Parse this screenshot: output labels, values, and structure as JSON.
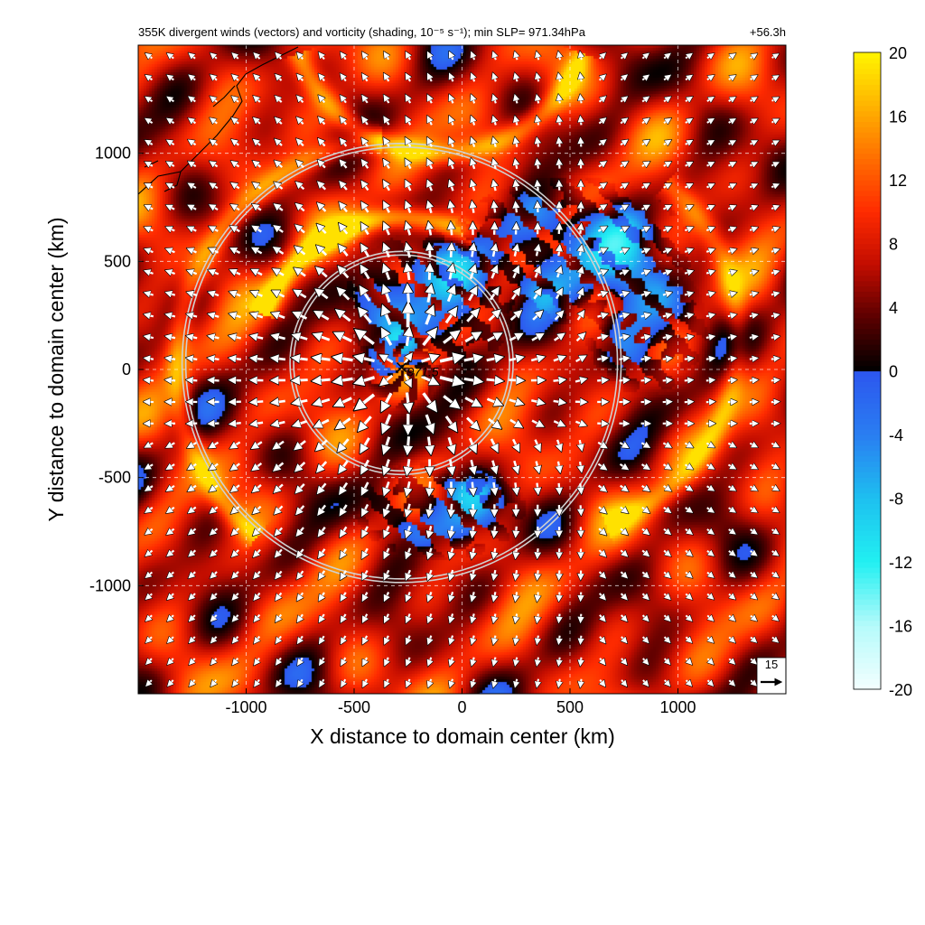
{
  "chart_data": {
    "type": "heatmap",
    "title": "355K divergent winds (vectors) and vorticity (shading, 10⁻⁵ s⁻¹); min SLP= 971.34hPa",
    "forecast_hour_label": "+56.3h",
    "xlabel": "X distance to domain center (km)",
    "ylabel": "Y distance to domain center (km)",
    "xlim": [
      -1500,
      1500
    ],
    "ylim": [
      -1500,
      1500
    ],
    "x_ticks": [
      -1000,
      -500,
      0,
      500,
      1000
    ],
    "y_ticks": [
      -1000,
      -500,
      0,
      500,
      1000
    ],
    "x_tick_labels": [
      "-1000",
      "-500",
      "0",
      "500",
      "1000"
    ],
    "y_tick_labels": [
      "-1000",
      "-500",
      "0",
      "500",
      "1000"
    ],
    "grid": true,
    "colorbar": {
      "min": -20,
      "max": 20,
      "ticks": [
        -20,
        -16,
        -12,
        -8,
        -4,
        0,
        4,
        8,
        12,
        16,
        20
      ],
      "tick_labels": [
        "-20",
        "-16",
        "-12",
        "-8",
        "-4",
        "0",
        "4",
        "8",
        "12",
        "16",
        "20"
      ],
      "neg_colors": [
        "#f4ffff",
        "#b6fbfb",
        "#22f0f2",
        "#1ec0f0",
        "#2a7ef2",
        "#2d57ef"
      ],
      "pos_colors": [
        "#000000",
        "#5a0000",
        "#c20d00",
        "#ff2b00",
        "#ff6e00",
        "#ffb400",
        "#fff500"
      ]
    },
    "center_marker": {
      "x": -280,
      "y": 10,
      "label": "971.5"
    },
    "range_rings_km": [
      500,
      1000
    ],
    "ring_center": {
      "x": -280,
      "y": 30
    },
    "reference_vector": {
      "label": "15",
      "magnitude": 15
    },
    "vortex_features": [
      {
        "type": "positive_band",
        "cx": -280,
        "cy": 20,
        "r": 1040,
        "from_deg": 95,
        "to_deg": 230,
        "strength": 14
      },
      {
        "type": "positive_band",
        "cx": -280,
        "cy": 20,
        "r": 680,
        "from_deg": 60,
        "to_deg": 160,
        "strength": 18
      },
      {
        "type": "positive_band",
        "cx": 350,
        "cy": 150,
        "r": 930,
        "from_deg": 290,
        "to_deg": 410,
        "strength": 13
      },
      {
        "type": "positive_band",
        "cx": -100,
        "cy": 1700,
        "r": 700,
        "from_deg": 200,
        "to_deg": 340,
        "strength": 15
      },
      {
        "type": "negative_patch",
        "cx": -150,
        "cy": 300,
        "rx": 350,
        "ry": 300,
        "strength": -7
      },
      {
        "type": "negative_patch",
        "cx": 500,
        "cy": 550,
        "rx": 500,
        "ry": 300,
        "strength": -6
      },
      {
        "type": "negative_patch",
        "cx": 850,
        "cy": 200,
        "rx": 250,
        "ry": 280,
        "strength": -5
      },
      {
        "type": "negative_patch",
        "cx": -100,
        "cy": -650,
        "rx": 350,
        "ry": 200,
        "strength": -6
      },
      {
        "type": "positive_core",
        "cx": -280,
        "cy": 10,
        "rx": 180,
        "ry": 200,
        "strength": 10
      }
    ],
    "vector_grid_spacing_km": 100
  }
}
